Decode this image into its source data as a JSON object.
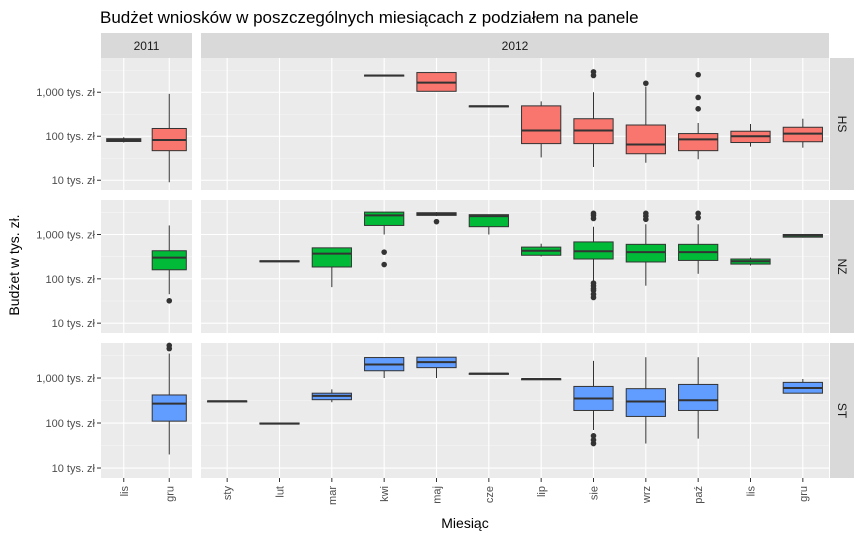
{
  "chart_data": {
    "type": "boxplot",
    "title": "Budżet wniosków w poszczególnych miesiącach z podziałem na panele",
    "xlabel": "Miesiąc",
    "ylabel": "Budżet w tys. zł.",
    "y_scale": "log10",
    "y_range": [
      6,
      6000
    ],
    "y_ticks": [
      {
        "value": 10,
        "label": "10 tys. zł"
      },
      {
        "value": 100,
        "label": "100 tys. zł"
      },
      {
        "value": 1000,
        "label": "1,000 tys. zł"
      }
    ],
    "column_panels": [
      {
        "label": "2011",
        "categories": [
          "lis",
          "gru"
        ]
      },
      {
        "label": "2012",
        "categories": [
          "sty",
          "lut",
          "mar",
          "kwi",
          "maj",
          "cze",
          "lip",
          "sie",
          "wrz",
          "paź",
          "lis",
          "gru"
        ]
      }
    ],
    "row_panels": [
      {
        "label": "HS",
        "fill": "#F8766D"
      },
      {
        "label": "NZ",
        "fill": "#00BA38"
      },
      {
        "label": "ST",
        "fill": "#619CFF"
      }
    ],
    "boxes": [
      {
        "row": "HS",
        "col": "2011",
        "x": "lis",
        "min": 72,
        "q1": 76,
        "median": 82,
        "q3": 88,
        "max": 95,
        "outliers": []
      },
      {
        "row": "HS",
        "col": "2011",
        "x": "gru",
        "min": 9,
        "q1": 47,
        "median": 82,
        "q3": 150,
        "max": 920,
        "outliers": []
      },
      {
        "row": "HS",
        "col": "2012",
        "x": "kwi",
        "min": 2350,
        "q1": 2350,
        "median": 2400,
        "q3": 2450,
        "max": 2450,
        "outliers": []
      },
      {
        "row": "HS",
        "col": "2012",
        "x": "maj",
        "min": 1050,
        "q1": 1050,
        "median": 1650,
        "q3": 2800,
        "max": 2800,
        "outliers": []
      },
      {
        "row": "HS",
        "col": "2012",
        "x": "cze",
        "min": 470,
        "q1": 470,
        "median": 480,
        "q3": 490,
        "max": 490,
        "outliers": []
      },
      {
        "row": "HS",
        "col": "2012",
        "x": "lip",
        "min": 33,
        "q1": 68,
        "median": 135,
        "q3": 490,
        "max": 620,
        "outliers": []
      },
      {
        "row": "HS",
        "col": "2012",
        "x": "sie",
        "min": 20,
        "q1": 68,
        "median": 135,
        "q3": 250,
        "max": 1000,
        "outliers": [
          2400,
          2900
        ]
      },
      {
        "row": "HS",
        "col": "2012",
        "x": "wrz",
        "min": 25,
        "q1": 40,
        "median": 65,
        "q3": 180,
        "max": 1350,
        "outliers": [
          1600
        ]
      },
      {
        "row": "HS",
        "col": "2012",
        "x": "paź",
        "min": 30,
        "q1": 47,
        "median": 85,
        "q3": 115,
        "max": 200,
        "outliers": [
          420,
          760,
          2500
        ]
      },
      {
        "row": "HS",
        "col": "2012",
        "x": "lis",
        "min": 58,
        "q1": 72,
        "median": 100,
        "q3": 130,
        "max": 190,
        "outliers": []
      },
      {
        "row": "HS",
        "col": "2012",
        "x": "gru",
        "min": 55,
        "q1": 75,
        "median": 115,
        "q3": 160,
        "max": 250,
        "outliers": []
      },
      {
        "row": "NZ",
        "col": "2011",
        "x": "gru",
        "min": 45,
        "q1": 160,
        "median": 300,
        "q3": 430,
        "max": 1600,
        "outliers": [
          32
        ]
      },
      {
        "row": "NZ",
        "col": "2012",
        "x": "lut",
        "min": 245,
        "q1": 245,
        "median": 250,
        "q3": 255,
        "max": 255,
        "outliers": []
      },
      {
        "row": "NZ",
        "col": "2012",
        "x": "mar",
        "min": 65,
        "q1": 185,
        "median": 370,
        "q3": 500,
        "max": 500,
        "outliers": []
      },
      {
        "row": "NZ",
        "col": "2012",
        "x": "kwi",
        "min": 1000,
        "q1": 1600,
        "median": 2700,
        "q3": 3200,
        "max": 3200,
        "outliers": [
          210,
          400
        ]
      },
      {
        "row": "NZ",
        "col": "2012",
        "x": "maj",
        "min": 2600,
        "q1": 2700,
        "median": 2900,
        "q3": 3100,
        "max": 3200,
        "outliers": [
          1950
        ]
      },
      {
        "row": "NZ",
        "col": "2012",
        "x": "cze",
        "min": 1000,
        "q1": 1500,
        "median": 2600,
        "q3": 2800,
        "max": 2800,
        "outliers": []
      },
      {
        "row": "NZ",
        "col": "2012",
        "x": "lip",
        "min": 320,
        "q1": 340,
        "median": 430,
        "q3": 520,
        "max": 620,
        "outliers": []
      },
      {
        "row": "NZ",
        "col": "2012",
        "x": "sie",
        "min": 90,
        "q1": 280,
        "median": 420,
        "q3": 680,
        "max": 1500,
        "outliers": [
          38,
          45,
          55,
          60,
          70,
          80,
          2300,
          2700,
          3000
        ]
      },
      {
        "row": "NZ",
        "col": "2012",
        "x": "wrz",
        "min": 70,
        "q1": 240,
        "median": 400,
        "q3": 600,
        "max": 1700,
        "outliers": [
          2200,
          2600,
          3000
        ]
      },
      {
        "row": "NZ",
        "col": "2012",
        "x": "paź",
        "min": 130,
        "q1": 260,
        "median": 400,
        "q3": 600,
        "max": 1700,
        "outliers": [
          2400,
          3000
        ]
      },
      {
        "row": "NZ",
        "col": "2012",
        "x": "lis",
        "min": 200,
        "q1": 215,
        "median": 250,
        "q3": 280,
        "max": 300,
        "outliers": []
      },
      {
        "row": "NZ",
        "col": "2012",
        "x": "gru",
        "min": 850,
        "q1": 870,
        "median": 950,
        "q3": 1000,
        "max": 1020,
        "outliers": []
      },
      {
        "row": "ST",
        "col": "2011",
        "x": "gru",
        "min": 20,
        "q1": 110,
        "median": 270,
        "q3": 420,
        "max": 3500,
        "outliers": [
          4500,
          5300
        ]
      },
      {
        "row": "ST",
        "col": "2012",
        "x": "sty",
        "min": 300,
        "q1": 300,
        "median": 305,
        "q3": 310,
        "max": 310,
        "outliers": []
      },
      {
        "row": "ST",
        "col": "2012",
        "x": "lut",
        "min": 95,
        "q1": 95,
        "median": 97,
        "q3": 100,
        "max": 100,
        "outliers": []
      },
      {
        "row": "ST",
        "col": "2012",
        "x": "mar",
        "min": 290,
        "q1": 330,
        "median": 400,
        "q3": 460,
        "max": 560,
        "outliers": []
      },
      {
        "row": "ST",
        "col": "2012",
        "x": "kwi",
        "min": 1000,
        "q1": 1450,
        "median": 2000,
        "q3": 2850,
        "max": 2850,
        "outliers": []
      },
      {
        "row": "ST",
        "col": "2012",
        "x": "maj",
        "min": 1000,
        "q1": 1700,
        "median": 2250,
        "q3": 2900,
        "max": 2900,
        "outliers": []
      },
      {
        "row": "ST",
        "col": "2012",
        "x": "cze",
        "min": 1230,
        "q1": 1240,
        "median": 1250,
        "q3": 1270,
        "max": 1270,
        "outliers": []
      },
      {
        "row": "ST",
        "col": "2012",
        "x": "lip",
        "min": 920,
        "q1": 930,
        "median": 950,
        "q3": 960,
        "max": 960,
        "outliers": []
      },
      {
        "row": "ST",
        "col": "2012",
        "x": "sie",
        "min": 70,
        "q1": 190,
        "median": 350,
        "q3": 650,
        "max": 2400,
        "outliers": [
          35,
          42,
          52
        ]
      },
      {
        "row": "ST",
        "col": "2012",
        "x": "wrz",
        "min": 35,
        "q1": 140,
        "median": 300,
        "q3": 580,
        "max": 2900,
        "outliers": []
      },
      {
        "row": "ST",
        "col": "2012",
        "x": "paź",
        "min": 45,
        "q1": 190,
        "median": 320,
        "q3": 720,
        "max": 2900,
        "outliers": []
      },
      {
        "row": "ST",
        "col": "2012",
        "x": "gru",
        "min": 450,
        "q1": 460,
        "median": 600,
        "q3": 800,
        "max": 950,
        "outliers": []
      }
    ]
  }
}
